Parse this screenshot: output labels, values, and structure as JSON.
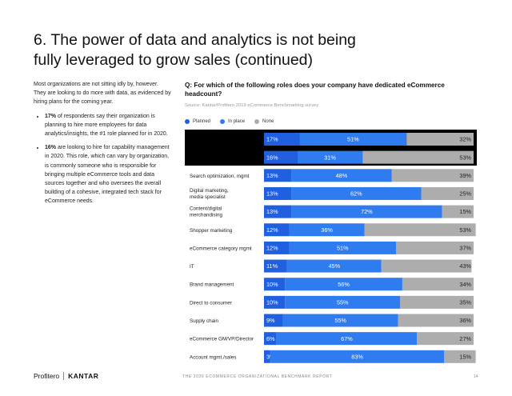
{
  "title_line1": "6. The power of data and analytics is not being",
  "title_line2": "fully leveraged to grow sales (continued)",
  "intro": "Most organizations are not sitting idly by, however. They are looking to do more with data, as evidenced by hiring plans for the coming year.",
  "bullet1_bold": "17%",
  "bullet1_text": " of respondents say their organization is planning to hire more employees for data analytics/insights, the #1 role planned for in 2020.",
  "bullet2_bold": "16%",
  "bullet2_text": " are looking to hire for capability management in 2020. This role, which can vary by organization, is commonly someone who is responsible for bringing multiple eCommerce tools and data sources together and who oversees the overall building of a cohesive, integrated tech stack for eCommerce needs.",
  "question": "Q: For which of the following roles does your company have dedicated eCommerce headcount?",
  "source": "Source: Kantar/Profitero 2019 eCommerce Benchmarking survey",
  "footer": {
    "logo_profitero": "Profitero",
    "logo_kantar": "KANTAR",
    "report": "THE 2020 ECOMMERCE ORGANIZATIONAL BENCHMARK REPORT",
    "page": "14"
  },
  "colors": {
    "planned": "#1f5fe0",
    "in_place": "#2f7bf0",
    "none": "#adadad",
    "highlight": "#000000"
  },
  "chart_data": {
    "type": "bar",
    "orientation": "horizontal",
    "stacked": true,
    "legend_position": "top-left",
    "series": [
      {
        "name": "Planned",
        "values": [
          17,
          16,
          13,
          13,
          13,
          12,
          12,
          11,
          10,
          10,
          9,
          6,
          3
        ]
      },
      {
        "name": "In place",
        "values": [
          51,
          31,
          48,
          62,
          72,
          36,
          51,
          45,
          56,
          55,
          55,
          67,
          83
        ]
      },
      {
        "name": "None",
        "values": [
          32,
          53,
          39,
          25,
          15,
          53,
          37,
          43,
          34,
          35,
          36,
          27,
          15
        ]
      }
    ],
    "categories": [
      "",
      "",
      "Search optimization, mgmt",
      "Digital marketing,\nmedia specialist",
      "Content/digital\nmerchandising",
      "Shopper marketing",
      "eCommerce category mgmt",
      "IT",
      "Brand management",
      "Direct to consumer",
      "Supply chain",
      "eCommerce GM/VP/Director",
      "Account mgmt./sales"
    ],
    "highlighted_rows": [
      0,
      1
    ],
    "xlim": [
      0,
      100
    ]
  }
}
